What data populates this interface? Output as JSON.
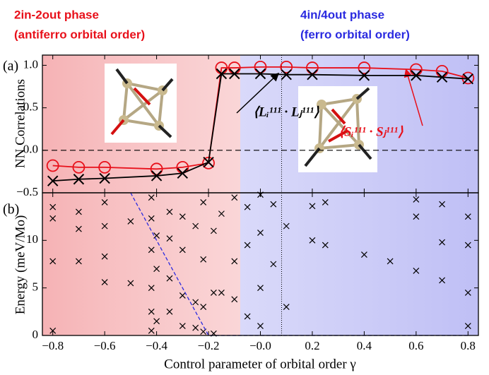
{
  "chart_data": [
    {
      "type": "line",
      "panel": "(a)",
      "ylabel": "NN Correlations",
      "annotations": [
        {
          "text": "2in-2out phase",
          "color": "#e8101a"
        },
        {
          "text": "(antiferro orbital order)",
          "color": "#e8101a"
        },
        {
          "text": "4in/4out phase",
          "color": "#2a2ae0"
        },
        {
          "text": "(ferro orbital order)",
          "color": "#2a2ae0"
        }
      ],
      "xlim": [
        -0.84,
        0.84
      ],
      "xticks": [
        -0.8,
        -0.6,
        -0.4,
        -0.2,
        0,
        0.2,
        0.4,
        0.6,
        0.8
      ],
      "ylim": [
        -0.5,
        1.12
      ],
      "yticks": [
        {
          "value": -0.5,
          "label": "−0.5"
        },
        {
          "value": 0,
          "label": "0.0"
        },
        {
          "value": 0.5,
          "label": "0.5"
        },
        {
          "value": 1,
          "label": "1.0"
        }
      ],
      "x": [
        -0.8,
        -0.7,
        -0.6,
        -0.4,
        -0.3,
        -0.2,
        -0.15,
        -0.1,
        0,
        0.1,
        0.2,
        0.4,
        0.6,
        0.7,
        0.8
      ],
      "series": [
        {
          "name": "⟨Sᵢ¹¹¹ · Sⱼ¹¹¹⟩",
          "color": "#e8101a",
          "marker": "circle",
          "values": [
            -0.18,
            -0.2,
            -0.2,
            -0.22,
            -0.2,
            -0.15,
            0.97,
            0.97,
            0.98,
            0.98,
            0.97,
            0.97,
            0.95,
            0.93,
            0.85
          ]
        },
        {
          "name": "⟨Lᵢ¹¹¹ · Lⱼ¹¹¹⟩",
          "color": "#000000",
          "marker": "cross",
          "values": [
            -0.36,
            -0.34,
            -0.33,
            -0.3,
            -0.27,
            -0.14,
            0.9,
            0.9,
            0.9,
            0.89,
            0.89,
            0.88,
            0.88,
            0.86,
            0.84
          ]
        }
      ]
    },
    {
      "type": "scatter",
      "panel": "(b)",
      "ylabel": "Energy (meV/Mo)",
      "xlabel": "Control parameter of orbital order γ",
      "xlim": [
        -0.84,
        0.84
      ],
      "xticks": [
        {
          "value": -0.8,
          "label": "−0.8"
        },
        {
          "value": -0.6,
          "label": "−0.6"
        },
        {
          "value": -0.4,
          "label": "−0.4"
        },
        {
          "value": -0.2,
          "label": "−0.2"
        },
        {
          "value": 0,
          "label": "−0.0"
        },
        {
          "value": 0.2,
          "label": "0.2"
        },
        {
          "value": 0.4,
          "label": "0.4"
        },
        {
          "value": 0.6,
          "label": "0.6"
        },
        {
          "value": 0.8,
          "label": "0.8"
        }
      ],
      "ylim": [
        0,
        15
      ],
      "yticks": [
        0,
        5,
        10
      ],
      "color": "#000000",
      "x": [
        -0.8,
        -0.8,
        -0.8,
        -0.8,
        -0.7,
        -0.7,
        -0.7,
        -0.6,
        -0.6,
        -0.6,
        -0.6,
        -0.5,
        -0.5,
        -0.42,
        -0.42,
        -0.42,
        -0.42,
        -0.42,
        -0.42,
        -0.4,
        -0.4,
        -0.4,
        -0.35,
        -0.35,
        -0.35,
        -0.35,
        -0.3,
        -0.3,
        -0.3,
        -0.3,
        -0.25,
        -0.25,
        -0.25,
        -0.22,
        -0.22,
        -0.22,
        -0.22,
        -0.18,
        -0.18,
        -0.18,
        -0.15,
        -0.15,
        -0.1,
        -0.1,
        -0.1,
        -0.05,
        -0.05,
        -0.05,
        0,
        0,
        0,
        0,
        0.05,
        0.05,
        0.1,
        0.1,
        0.2,
        0.2,
        0.25,
        0.25,
        0.4,
        0.5,
        0.6,
        0.6,
        0.6,
        0.7,
        0.7,
        0.7,
        0.8,
        0.8,
        0.8,
        0.8
      ],
      "values": [
        0.5,
        7.8,
        12.3,
        13.5,
        7.8,
        11.2,
        13,
        5.6,
        8.3,
        11.5,
        14,
        5.5,
        12,
        0.5,
        2.5,
        5,
        9,
        12.3,
        14.5,
        1.5,
        7,
        10.5,
        2.5,
        6,
        10.2,
        13,
        1,
        4.2,
        9,
        12.5,
        0.8,
        3.5,
        11.5,
        0.4,
        3,
        8,
        14,
        0.2,
        4.5,
        11,
        4.5,
        12.8,
        3.8,
        7.8,
        14.5,
        2,
        9.5,
        13.5,
        1,
        5,
        10.8,
        14.8,
        7.5,
        13.8,
        3,
        11.5,
        10,
        13.6,
        9.5,
        14,
        8.5,
        7.8,
        6.8,
        12.5,
        14.3,
        5.8,
        9.8,
        13.8,
        1,
        4.5,
        9.5,
        12.5
      ],
      "gap_line": {
        "x": [
          -0.5,
          -0.2,
          0.8
        ],
        "values": [
          15,
          0,
          0
        ],
        "color": "#2a2ae0"
      }
    }
  ]
}
